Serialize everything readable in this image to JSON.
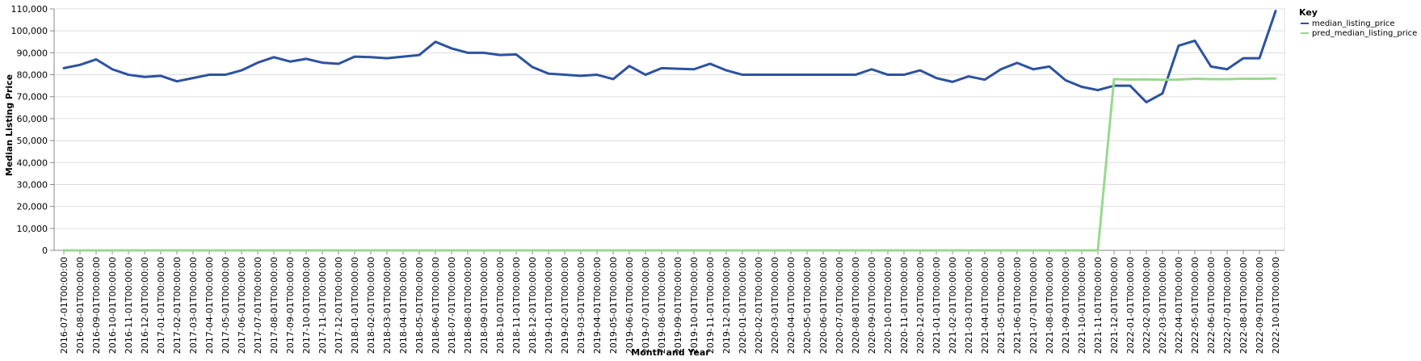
{
  "chart_data": {
    "type": "line",
    "title": "",
    "xlabel": "Month and Year",
    "ylabel": "Median Listing Price",
    "ylim": [
      0,
      110000
    ],
    "y_ticks": [
      "0",
      "10,000",
      "20,000",
      "30,000",
      "40,000",
      "50,000",
      "60,000",
      "70,000",
      "80,000",
      "90,000",
      "100,000",
      "110,000"
    ],
    "grid": true,
    "legend": {
      "title": "Key",
      "placement": "top-right"
    },
    "x": [
      "2016-07-01T00:00:00",
      "2016-08-01T00:00:00",
      "2016-09-01T00:00:00",
      "2016-10-01T00:00:00",
      "2016-11-01T00:00:00",
      "2016-12-01T00:00:00",
      "2017-01-01T00:00:00",
      "2017-02-01T00:00:00",
      "2017-03-01T00:00:00",
      "2017-04-01T00:00:00",
      "2017-05-01T00:00:00",
      "2017-06-01T00:00:00",
      "2017-07-01T00:00:00",
      "2017-08-01T00:00:00",
      "2017-09-01T00:00:00",
      "2017-10-01T00:00:00",
      "2017-11-01T00:00:00",
      "2017-12-01T00:00:00",
      "2018-01-01T00:00:00",
      "2018-02-01T00:00:00",
      "2018-03-01T00:00:00",
      "2018-04-01T00:00:00",
      "2018-05-01T00:00:00",
      "2018-06-01T00:00:00",
      "2018-07-01T00:00:00",
      "2018-08-01T00:00:00",
      "2018-09-01T00:00:00",
      "2018-10-01T00:00:00",
      "2018-11-01T00:00:00",
      "2018-12-01T00:00:00",
      "2019-01-01T00:00:00",
      "2019-02-01T00:00:00",
      "2019-03-01T00:00:00",
      "2019-04-01T00:00:00",
      "2019-05-01T00:00:00",
      "2019-06-01T00:00:00",
      "2019-07-01T00:00:00",
      "2019-08-01T00:00:00",
      "2019-09-01T00:00:00",
      "2019-10-01T00:00:00",
      "2019-11-01T00:00:00",
      "2019-12-01T00:00:00",
      "2020-01-01T00:00:00",
      "2020-02-01T00:00:00",
      "2020-03-01T00:00:00",
      "2020-04-01T00:00:00",
      "2020-05-01T00:00:00",
      "2020-06-01T00:00:00",
      "2020-07-01T00:00:00",
      "2020-08-01T00:00:00",
      "2020-09-01T00:00:00",
      "2020-10-01T00:00:00",
      "2020-11-01T00:00:00",
      "2020-12-01T00:00:00",
      "2021-01-01T00:00:00",
      "2021-02-01T00:00:00",
      "2021-03-01T00:00:00",
      "2021-04-01T00:00:00",
      "2021-05-01T00:00:00",
      "2021-06-01T00:00:00",
      "2021-07-01T00:00:00",
      "2021-08-01T00:00:00",
      "2021-09-01T00:00:00",
      "2021-10-01T00:00:00",
      "2021-11-01T00:00:00",
      "2021-12-01T00:00:00",
      "2022-01-01T00:00:00",
      "2022-02-01T00:00:00",
      "2022-03-01T00:00:00",
      "2022-04-01T00:00:00",
      "2022-05-01T00:00:00",
      "2022-06-01T00:00:00",
      "2022-07-01T00:00:00",
      "2022-08-01T00:00:00",
      "2022-09-01T00:00:00",
      "2022-10-01T00:00:00"
    ],
    "series": [
      {
        "name": "median_listing_price",
        "color": "#2c52a0",
        "values": [
          83000,
          84500,
          87000,
          82500,
          80000,
          79000,
          79500,
          77000,
          78500,
          80000,
          80000,
          82000,
          85500,
          88000,
          86000,
          87250,
          85500,
          85000,
          88250,
          88000,
          87500,
          88250,
          89000,
          95000,
          92000,
          90000,
          90000,
          89000,
          89250,
          83500,
          80500,
          80000,
          79500,
          80000,
          78000,
          84000,
          80000,
          83000,
          82750,
          82500,
          85000,
          82000,
          80000,
          80000,
          80000,
          80000,
          80000,
          80000,
          80000,
          80000,
          82500,
          80000,
          80000,
          82000,
          78500,
          76750,
          79250,
          77750,
          82500,
          85400,
          82500,
          83750,
          77500,
          74500,
          73000,
          75000,
          75000,
          67500,
          71500,
          93250,
          95500,
          83750,
          82500,
          87500,
          87500,
          109000
        ]
      },
      {
        "name": "pred_median_listing_price",
        "color": "#98d98e",
        "values": [
          0,
          0,
          0,
          0,
          0,
          0,
          0,
          0,
          0,
          0,
          0,
          0,
          0,
          0,
          0,
          0,
          0,
          0,
          0,
          0,
          0,
          0,
          0,
          0,
          0,
          0,
          0,
          0,
          0,
          0,
          0,
          0,
          0,
          0,
          0,
          0,
          0,
          0,
          0,
          0,
          0,
          0,
          0,
          0,
          0,
          0,
          0,
          0,
          0,
          0,
          0,
          0,
          0,
          0,
          0,
          0,
          0,
          0,
          0,
          0,
          0,
          0,
          0,
          0,
          0,
          78000,
          77800,
          77900,
          77700,
          77800,
          78200,
          78000,
          78000,
          78200,
          78200,
          78300
        ]
      }
    ]
  }
}
